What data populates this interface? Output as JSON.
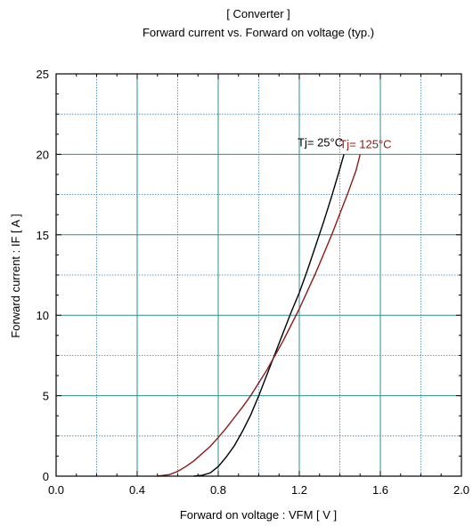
{
  "chart_data": {
    "type": "line",
    "title": "[ Converter ]",
    "subtitle": "Forward current  vs.  Forward on voltage  (typ.)",
    "xlabel": "Forward on voltage  :  VFM  [ V ]",
    "ylabel": "Forward current  :  IF  [ A ]",
    "xlim": [
      0.0,
      2.0
    ],
    "ylim": [
      0,
      25
    ],
    "x_ticks": [
      "0.0",
      "0.4",
      "0.8",
      "1.2",
      "1.6",
      "2.0"
    ],
    "y_ticks": [
      "0",
      "5",
      "10",
      "15",
      "20",
      "25"
    ],
    "grid": true,
    "series": [
      {
        "name": "Tj= 25°C",
        "color": "#000000",
        "x": [
          0.68,
          0.72,
          0.76,
          0.8,
          0.84,
          0.88,
          0.92,
          0.96,
          1.0,
          1.04,
          1.08,
          1.12,
          1.16,
          1.2,
          1.24,
          1.28,
          1.32,
          1.36,
          1.4,
          1.42
        ],
        "y": [
          0,
          0.05,
          0.2,
          0.6,
          1.2,
          1.9,
          2.8,
          3.8,
          5.0,
          6.3,
          7.6,
          8.9,
          10.2,
          11.4,
          12.8,
          14.3,
          15.8,
          17.4,
          19.1,
          20.0
        ]
      },
      {
        "name": "Tj= 125°C",
        "color": "#8b1a1a",
        "x": [
          0.5,
          0.56,
          0.6,
          0.64,
          0.68,
          0.72,
          0.76,
          0.8,
          0.84,
          0.88,
          0.92,
          0.96,
          1.0,
          1.04,
          1.08,
          1.12,
          1.16,
          1.2,
          1.24,
          1.28,
          1.32,
          1.36,
          1.4,
          1.44,
          1.48,
          1.5
        ],
        "y": [
          0,
          0.1,
          0.3,
          0.6,
          0.95,
          1.4,
          1.85,
          2.4,
          3.0,
          3.65,
          4.3,
          5.0,
          5.8,
          6.6,
          7.5,
          8.4,
          9.4,
          10.4,
          11.5,
          12.6,
          13.8,
          15.0,
          16.3,
          17.6,
          19.0,
          20.0
        ]
      }
    ]
  }
}
